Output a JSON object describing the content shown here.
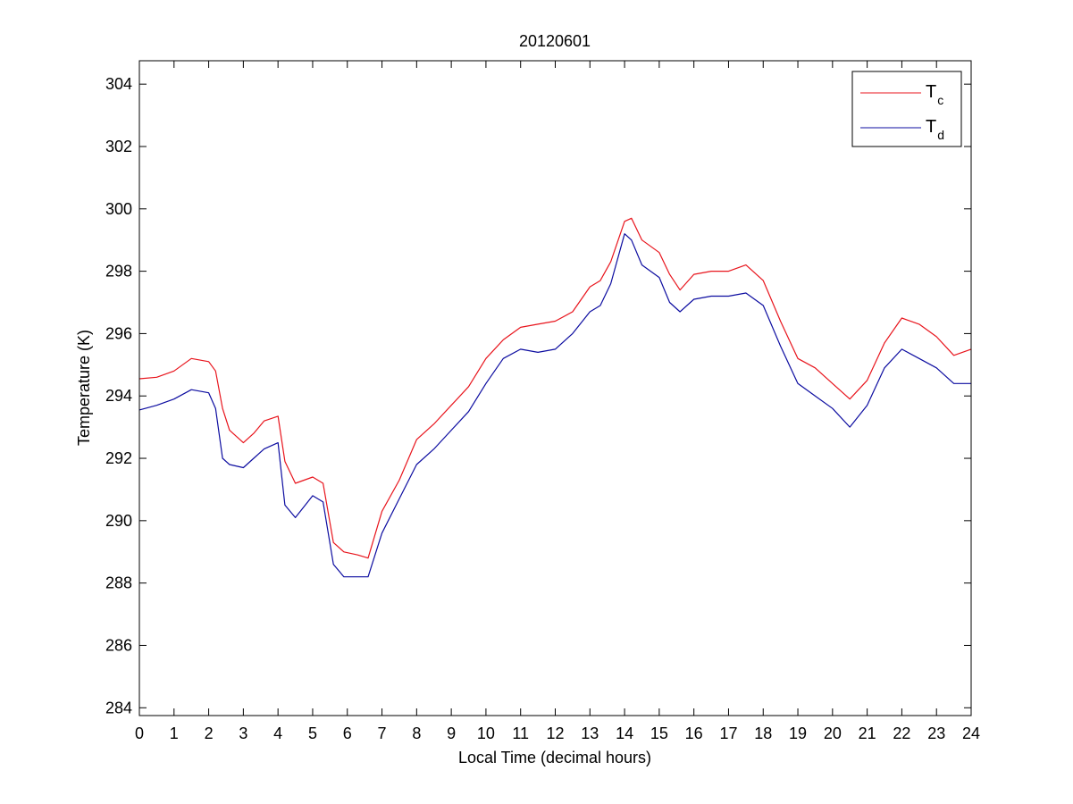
{
  "chart_data": {
    "type": "line",
    "title": "20120601",
    "xlabel": "Local Time (decimal hours)",
    "ylabel": "Temperature (K)",
    "xlim": [
      0,
      24
    ],
    "ylim": [
      283.75,
      304.75
    ],
    "xticks": [
      0,
      1,
      2,
      3,
      4,
      5,
      6,
      7,
      8,
      9,
      10,
      11,
      12,
      13,
      14,
      15,
      16,
      17,
      18,
      19,
      20,
      21,
      22,
      23,
      24
    ],
    "yticks": [
      284,
      286,
      288,
      290,
      292,
      294,
      296,
      298,
      300,
      302,
      304
    ],
    "grid": false,
    "legend": {
      "position": "top-right"
    },
    "series": [
      {
        "name": "T",
        "name_subscript": "c",
        "color": "#e8141c",
        "x": [
          0.0,
          0.5,
          1.0,
          1.5,
          2.0,
          2.2,
          2.4,
          2.6,
          3.0,
          3.3,
          3.6,
          4.0,
          4.2,
          4.5,
          5.0,
          5.3,
          5.6,
          5.9,
          6.3,
          6.6,
          7.0,
          7.5,
          8.0,
          8.5,
          9.0,
          9.5,
          10.0,
          10.5,
          11.0,
          11.5,
          12.0,
          12.5,
          13.0,
          13.3,
          13.6,
          14.0,
          14.2,
          14.5,
          15.0,
          15.3,
          15.6,
          16.0,
          16.5,
          17.0,
          17.5,
          18.0,
          18.5,
          19.0,
          19.5,
          20.0,
          20.5,
          21.0,
          21.5,
          22.0,
          22.5,
          23.0,
          23.5,
          24.0
        ],
        "values": [
          294.55,
          294.6,
          294.8,
          295.2,
          295.1,
          294.8,
          293.6,
          292.9,
          292.5,
          292.8,
          293.2,
          293.35,
          291.9,
          291.2,
          291.4,
          291.2,
          289.3,
          289.0,
          288.9,
          288.8,
          290.3,
          291.3,
          292.6,
          293.1,
          293.7,
          294.3,
          295.2,
          295.8,
          296.2,
          296.3,
          296.4,
          296.7,
          297.5,
          297.7,
          298.3,
          299.6,
          299.7,
          299.0,
          298.6,
          297.9,
          297.4,
          297.9,
          298.0,
          298.0,
          298.2,
          297.7,
          296.4,
          295.2,
          294.9,
          294.4,
          293.9,
          294.5,
          295.7,
          296.5,
          296.3,
          295.9,
          295.3,
          295.5
        ]
      },
      {
        "name": "T",
        "name_subscript": "d",
        "color": "#0c0ca0",
        "x": [
          0.0,
          0.5,
          1.0,
          1.5,
          2.0,
          2.2,
          2.4,
          2.6,
          3.0,
          3.3,
          3.6,
          4.0,
          4.2,
          4.5,
          5.0,
          5.3,
          5.6,
          5.9,
          6.3,
          6.6,
          7.0,
          7.5,
          8.0,
          8.5,
          9.0,
          9.5,
          10.0,
          10.5,
          11.0,
          11.5,
          12.0,
          12.5,
          13.0,
          13.3,
          13.6,
          14.0,
          14.2,
          14.5,
          15.0,
          15.3,
          15.6,
          16.0,
          16.5,
          17.0,
          17.5,
          18.0,
          18.5,
          19.0,
          19.5,
          20.0,
          20.5,
          21.0,
          21.5,
          22.0,
          22.5,
          23.0,
          23.5,
          24.0
        ],
        "values": [
          293.55,
          293.7,
          293.9,
          294.2,
          294.1,
          293.6,
          292.0,
          291.8,
          291.7,
          292.0,
          292.3,
          292.5,
          290.5,
          290.1,
          290.8,
          290.6,
          288.6,
          288.2,
          288.2,
          288.2,
          289.6,
          290.7,
          291.8,
          292.3,
          292.9,
          293.5,
          294.4,
          295.2,
          295.5,
          295.4,
          295.5,
          296.0,
          296.7,
          296.9,
          297.6,
          299.2,
          299.0,
          298.2,
          297.8,
          297.0,
          296.7,
          297.1,
          297.2,
          297.2,
          297.3,
          296.9,
          295.6,
          294.4,
          294.0,
          293.6,
          293.0,
          293.7,
          294.9,
          295.5,
          295.2,
          294.9,
          294.4,
          294.4
        ]
      }
    ]
  }
}
